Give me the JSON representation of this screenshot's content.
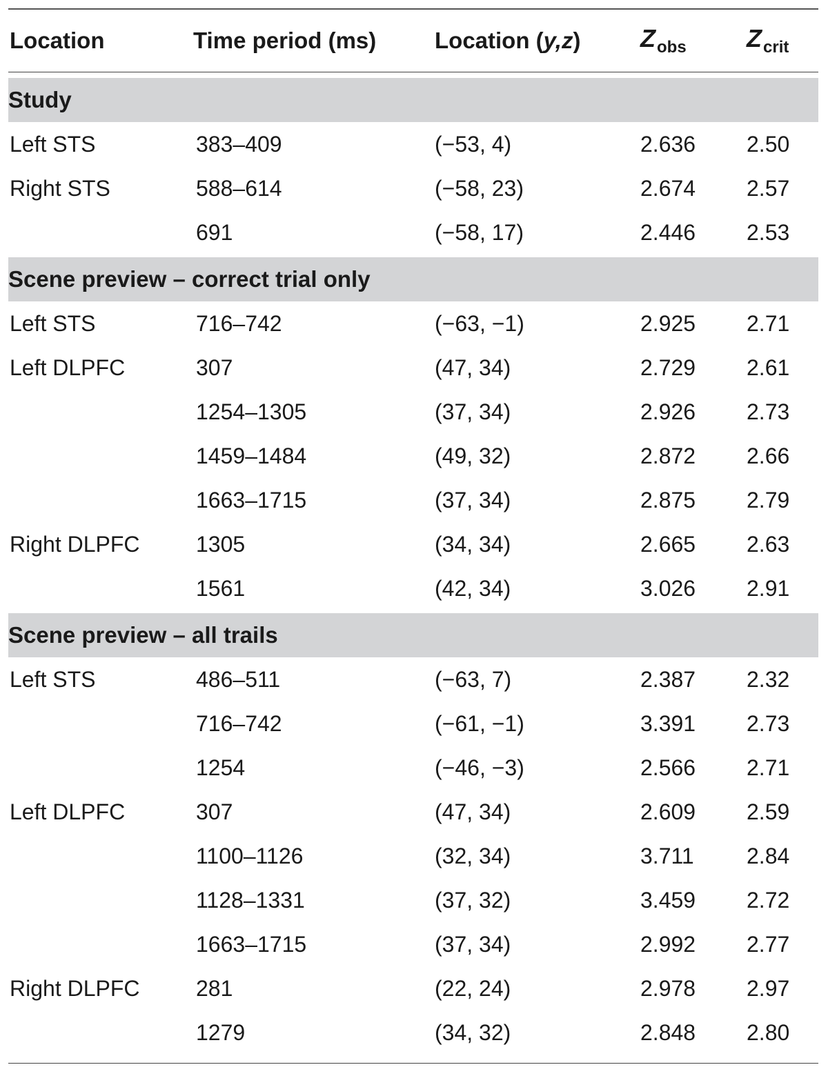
{
  "header": {
    "location": "Location",
    "time_period": "Time period (ms)",
    "location_yz_prefix": "Location (",
    "location_yz_vars": "y,z",
    "location_yz_suffix": ")",
    "zobs_symbol": "Z",
    "zobs_sub": "obs",
    "zcrit_symbol": "Z",
    "zcrit_sub": "crit"
  },
  "sections": [
    {
      "title": "Study",
      "rows": [
        {
          "location": "Left STS",
          "time": "383–409",
          "coords": "(−53, 4)",
          "zobs": "2.636",
          "zcrit": "2.50"
        },
        {
          "location": "Right STS",
          "time": "588–614",
          "coords": "(−58, 23)",
          "zobs": "2.674",
          "zcrit": "2.57"
        },
        {
          "location": "",
          "time": "691",
          "coords": "(−58, 17)",
          "zobs": "2.446",
          "zcrit": "2.53"
        }
      ]
    },
    {
      "title": "Scene preview – correct trial only",
      "rows": [
        {
          "location": "Left STS",
          "time": "716–742",
          "coords": "(−63, −1)",
          "zobs": "2.925",
          "zcrit": "2.71"
        },
        {
          "location": "Left DLPFC",
          "time": "307",
          "coords": "(47, 34)",
          "zobs": "2.729",
          "zcrit": "2.61"
        },
        {
          "location": "",
          "time": "1254–1305",
          "coords": "(37, 34)",
          "zobs": "2.926",
          "zcrit": "2.73"
        },
        {
          "location": "",
          "time": "1459–1484",
          "coords": "(49, 32)",
          "zobs": "2.872",
          "zcrit": "2.66"
        },
        {
          "location": "",
          "time": "1663–1715",
          "coords": "(37, 34)",
          "zobs": "2.875",
          "zcrit": "2.79"
        },
        {
          "location": "Right DLPFC",
          "time": "1305",
          "coords": "(34, 34)",
          "zobs": "2.665",
          "zcrit": "2.63"
        },
        {
          "location": "",
          "time": "1561",
          "coords": "(42, 34)",
          "zobs": "3.026",
          "zcrit": "2.91"
        }
      ]
    },
    {
      "title": "Scene preview – all trails",
      "rows": [
        {
          "location": "Left STS",
          "time": "486–511",
          "coords": "(−63, 7)",
          "zobs": "2.387",
          "zcrit": "2.32"
        },
        {
          "location": "",
          "time": "716–742",
          "coords": "(−61, −1)",
          "zobs": "3.391",
          "zcrit": "2.73"
        },
        {
          "location": "",
          "time": "1254",
          "coords": "(−46, −3)",
          "zobs": "2.566",
          "zcrit": "2.71"
        },
        {
          "location": "Left DLPFC",
          "time": "307",
          "coords": "(47, 34)",
          "zobs": "2.609",
          "zcrit": "2.59"
        },
        {
          "location": "",
          "time": "1100–1126",
          "coords": "(32, 34)",
          "zobs": "3.711",
          "zcrit": "2.84"
        },
        {
          "location": "",
          "time": "1128–1331",
          "coords": "(37, 32)",
          "zobs": "3.459",
          "zcrit": "2.72"
        },
        {
          "location": "",
          "time": "1663–1715",
          "coords": "(37, 34)",
          "zobs": "2.992",
          "zcrit": "2.77"
        },
        {
          "location": "Right DLPFC",
          "time": "281",
          "coords": "(22, 24)",
          "zobs": "2.978",
          "zcrit": "2.97"
        },
        {
          "location": "",
          "time": "1279",
          "coords": "(34, 32)",
          "zobs": "2.848",
          "zcrit": "2.80"
        }
      ]
    }
  ]
}
